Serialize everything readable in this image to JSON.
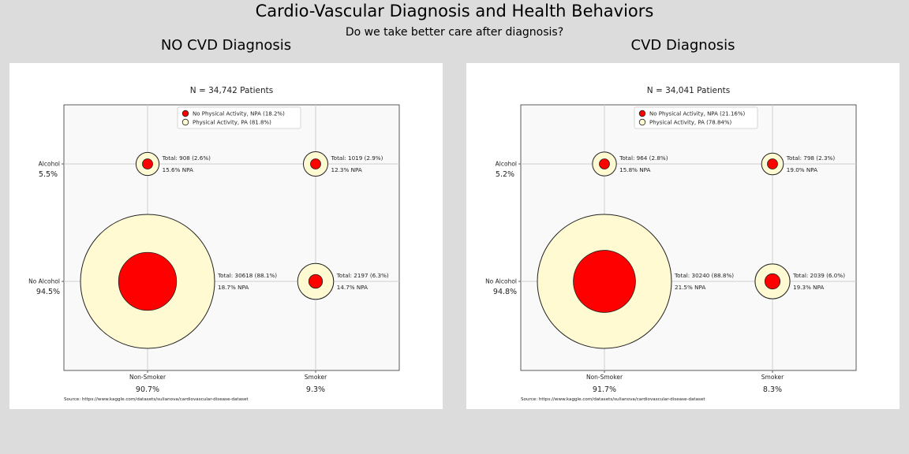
{
  "suptitle": "Cardio-Vascular Diagnosis and Health Behaviors",
  "subtitle": "Do we take better care after diagnosis?",
  "colors": {
    "npa": "#ff0000",
    "pa": "#fffad2",
    "background": "#dcdcdc",
    "plot_bg": "#f9f9f9"
  },
  "chart_data": [
    {
      "type": "scatter",
      "panel_title": "NO CVD Diagnosis",
      "title": "N = 34,742 Patients",
      "legend": {
        "position": "top-center",
        "entries": [
          "No Physical Activity, NPA (18.2%)",
          "Physical Activity, PA (81.8%)"
        ]
      },
      "x_categories": [
        "Non-Smoker",
        "Smoker"
      ],
      "x_shares": [
        "90.7%",
        "9.3%"
      ],
      "y_categories": [
        "No Alcohol",
        "Alcohol"
      ],
      "y_shares": [
        "94.5%",
        "5.5%"
      ],
      "grid": true,
      "points": [
        {
          "smoking": "Non-Smoker",
          "alcohol": "Alcohol",
          "total": 908,
          "total_label": "Total: 908 (2.6%)",
          "npa_label": "15.6% NPA",
          "npa_share": 0.156
        },
        {
          "smoking": "Smoker",
          "alcohol": "Alcohol",
          "total": 1019,
          "total_label": "Total: 1019 (2.9%)",
          "npa_label": "12.3% NPA",
          "npa_share": 0.123
        },
        {
          "smoking": "Non-Smoker",
          "alcohol": "No Alcohol",
          "total": 30618,
          "total_label": "Total: 30618 (88.1%)",
          "npa_label": "18.7% NPA",
          "npa_share": 0.187
        },
        {
          "smoking": "Smoker",
          "alcohol": "No Alcohol",
          "total": 2197,
          "total_label": "Total: 2197 (6.3%)",
          "npa_label": "14.7% NPA",
          "npa_share": 0.147
        }
      ],
      "source": "Source: https://www.kaggle.com/datasets/sulianova/cardiovascular-disease-dataset"
    },
    {
      "type": "scatter",
      "panel_title": "CVD Diagnosis",
      "title": "N = 34,041 Patients",
      "legend": {
        "position": "top-center",
        "entries": [
          "No Physical Activity, NPA (21.16%)",
          "Physical Activity, PA (78.84%)"
        ]
      },
      "x_categories": [
        "Non-Smoker",
        "Smoker"
      ],
      "x_shares": [
        "91.7%",
        "8.3%"
      ],
      "y_categories": [
        "No Alcohol",
        "Alcohol"
      ],
      "y_shares": [
        "94.8%",
        "5.2%"
      ],
      "grid": true,
      "points": [
        {
          "smoking": "Non-Smoker",
          "alcohol": "Alcohol",
          "total": 964,
          "total_label": "Total: 964 (2.8%)",
          "npa_label": "15.8% NPA",
          "npa_share": 0.158
        },
        {
          "smoking": "Smoker",
          "alcohol": "Alcohol",
          "total": 798,
          "total_label": "Total: 798 (2.3%)",
          "npa_label": "19.0% NPA",
          "npa_share": 0.19
        },
        {
          "smoking": "Non-Smoker",
          "alcohol": "No Alcohol",
          "total": 30240,
          "total_label": "Total: 30240 (88.8%)",
          "npa_label": "21.5% NPA",
          "npa_share": 0.215
        },
        {
          "smoking": "Smoker",
          "alcohol": "No Alcohol",
          "total": 2039,
          "total_label": "Total: 2039 (6.0%)",
          "npa_label": "19.3% NPA",
          "npa_share": 0.193
        }
      ],
      "source": "Source: https://www.kaggle.com/datasets/sulianova/cardiovascular-disease-dataset"
    }
  ]
}
